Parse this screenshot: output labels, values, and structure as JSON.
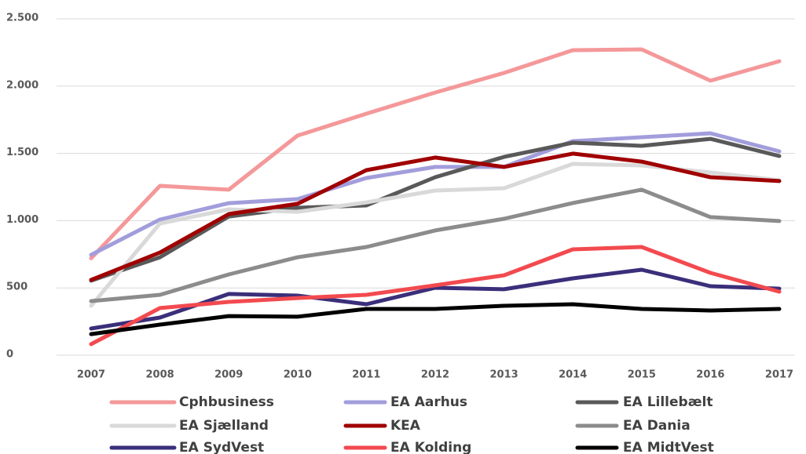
{
  "chart_data": {
    "type": "line",
    "categories": [
      "2007",
      "2008",
      "2009",
      "2010",
      "2011",
      "2012",
      "2013",
      "2014",
      "2015",
      "2016",
      "2017"
    ],
    "series": [
      {
        "name": "Cphbusiness",
        "color": "#f4989a",
        "values": [
          720,
          1259,
          1230,
          1632,
          1795,
          1952,
          2098,
          2267,
          2273,
          2040,
          2185
        ]
      },
      {
        "name": "EA Aarhus",
        "color": "#a29ddb",
        "values": [
          746,
          1008,
          1130,
          1160,
          1317,
          1399,
          1399,
          1591,
          1620,
          1649,
          1515
        ]
      },
      {
        "name": "EA Lillebælt",
        "color": "#595959",
        "values": [
          554,
          728,
          1031,
          1096,
          1113,
          1323,
          1474,
          1579,
          1556,
          1608,
          1480
        ]
      },
      {
        "name": "EA Sjælland",
        "color": "#d9d9d9",
        "values": [
          367,
          979,
          1084,
          1066,
          1136,
          1224,
          1241,
          1422,
          1410,
          1358,
          1300
        ]
      },
      {
        "name": "KEA",
        "color": "#a00000",
        "values": [
          560,
          763,
          1049,
          1125,
          1375,
          1469,
          1399,
          1498,
          1439,
          1323,
          1294
        ]
      },
      {
        "name": "EA Dania",
        "color": "#8c8c8c",
        "values": [
          402,
          449,
          600,
          728,
          804,
          927,
          1014,
          1131,
          1230,
          1026,
          997
        ]
      },
      {
        "name": "EA SydVest",
        "color": "#3a2f7a",
        "values": [
          198,
          280,
          455,
          443,
          379,
          501,
          490,
          571,
          635,
          513,
          495
        ]
      },
      {
        "name": "EA Kolding",
        "color": "#f24a4f",
        "values": [
          82,
          350,
          396,
          425,
          449,
          519,
          594,
          787,
          804,
          612,
          472
        ]
      },
      {
        "name": "EA MidtVest",
        "color": "#000000",
        "values": [
          157,
          227,
          291,
          286,
          344,
          344,
          367,
          379,
          344,
          332,
          344
        ]
      }
    ],
    "ylim": [
      0,
      2500
    ],
    "yticks": [
      0,
      500,
      {
        "value": 1000,
        "label": "1.000"
      },
      {
        "value": 1500,
        "label": "1.500"
      },
      {
        "value": 2000,
        "label": "2.000"
      },
      {
        "value": 2500,
        "label": "2.500"
      }
    ],
    "grid": true,
    "legend": "bottom"
  }
}
